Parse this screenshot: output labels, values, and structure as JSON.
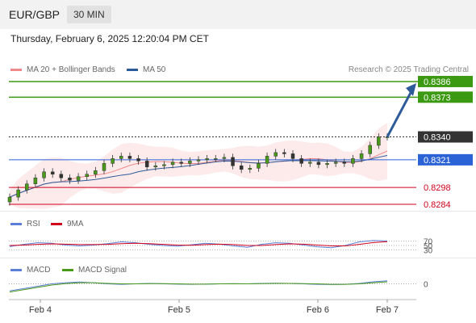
{
  "header": {
    "pair": "EUR/GBP",
    "timeframe": "30 MIN"
  },
  "datetime": "Thursday, February 6, 2025 12:20:04 PM CET",
  "legend": {
    "bollinger": {
      "label": "MA 20 + Bollinger Bands",
      "color": "#f08a8a"
    },
    "ma50": {
      "label": "MA 50",
      "color": "#2d5b9a"
    }
  },
  "credit": "Research © 2025 Trading Central",
  "rsi_legend": {
    "rsi_label": "RSI",
    "rsi_color": "#5b7fd6",
    "ma_label": "9MA",
    "ma_color": "#d0021b"
  },
  "macd_legend": {
    "macd_label": "MACD",
    "macd_color": "#5b7fd6",
    "signal_label": "MACD Signal",
    "signal_color": "#4a9a1a"
  },
  "chart_data": [
    {
      "type": "line",
      "x_ticks": [
        "Feb 4",
        "Feb 5",
        "Feb 6",
        "Feb 7"
      ],
      "close": [
        0.829,
        0.8296,
        0.8301,
        0.8306,
        0.8311,
        0.8309,
        0.8306,
        0.8304,
        0.8307,
        0.8309,
        0.8312,
        0.8318,
        0.8322,
        0.8324,
        0.8322,
        0.832,
        0.8315,
        0.8316,
        0.8317,
        0.8319,
        0.8318,
        0.832,
        0.8321,
        0.8322,
        0.8322,
        0.8323,
        0.8316,
        0.8313,
        0.8314,
        0.8318,
        0.8324,
        0.8327,
        0.8326,
        0.8322,
        0.8318,
        0.8319,
        0.8317,
        0.8318,
        0.8319,
        0.8318,
        0.8322,
        0.8326,
        0.8333,
        0.834,
        0.834
      ],
      "levels": [
        {
          "value": "0.8386",
          "kind": "resistance",
          "color": "#3c9a12"
        },
        {
          "value": "0.8373",
          "kind": "resistance",
          "color": "#3c9a12"
        },
        {
          "value": "0.8340",
          "kind": "last-price",
          "color": "#333333"
        },
        {
          "value": "0.8321",
          "kind": "pivot",
          "color": "#2b63d6"
        },
        {
          "value": "0.8298",
          "kind": "support",
          "color": "#d0021b"
        },
        {
          "value": "0.8284",
          "kind": "support",
          "color": "#d0021b"
        }
      ],
      "y_range": [
        0.8278,
        0.8392
      ],
      "arrow": {
        "direction": "up",
        "from": 0.834,
        "to": 0.8386,
        "color": "#2d5b9a"
      }
    },
    {
      "type": "line",
      "title": "RSI",
      "levels": [
        "70",
        "50",
        "30"
      ],
      "y_range": [
        0,
        100
      ],
      "rsi": [
        45,
        55,
        62,
        60,
        52,
        48,
        52,
        58,
        66,
        62,
        55,
        50,
        47,
        53,
        60,
        56,
        48,
        42,
        55,
        62,
        60,
        52,
        44,
        40,
        50,
        66,
        72,
        70
      ],
      "ma": [
        50,
        52,
        55,
        57,
        56,
        54,
        54,
        55,
        58,
        60,
        58,
        55,
        52,
        51,
        54,
        56,
        54,
        50,
        50,
        54,
        57,
        56,
        52,
        48,
        48,
        55,
        63,
        67
      ]
    },
    {
      "type": "line",
      "title": "MACD",
      "levels": [
        "0"
      ],
      "y_range": [
        -0.0005,
        0.0004
      ],
      "macd": [
        -0.0003,
        -0.0002,
        -0.0001,
        0.0,
        5e-05,
        8e-05,
        5e-05,
        0.0,
        -2e-05,
        0.0,
        2e-05,
        0.0,
        -1e-05,
        -2e-05,
        -1e-05,
        0.0,
        1e-05,
        0.0,
        2e-05,
        3e-05,
        2e-05,
        0.0,
        -2e-05,
        -3e-05,
        -2e-05,
        2e-05,
        9e-05,
        0.00013
      ],
      "signal": [
        -0.00035,
        -0.00025,
        -0.00015,
        -5e-05,
        1e-05,
        5e-05,
        5e-05,
        2e-05,
        0.0,
        0.0,
        1e-05,
        1e-05,
        0.0,
        -1e-05,
        -1e-05,
        0.0,
        0.0,
        0.0,
        1e-05,
        2e-05,
        2e-05,
        1e-05,
        0.0,
        -2e-05,
        -2e-05,
        0.0,
        5e-05,
        9e-05
      ]
    }
  ]
}
